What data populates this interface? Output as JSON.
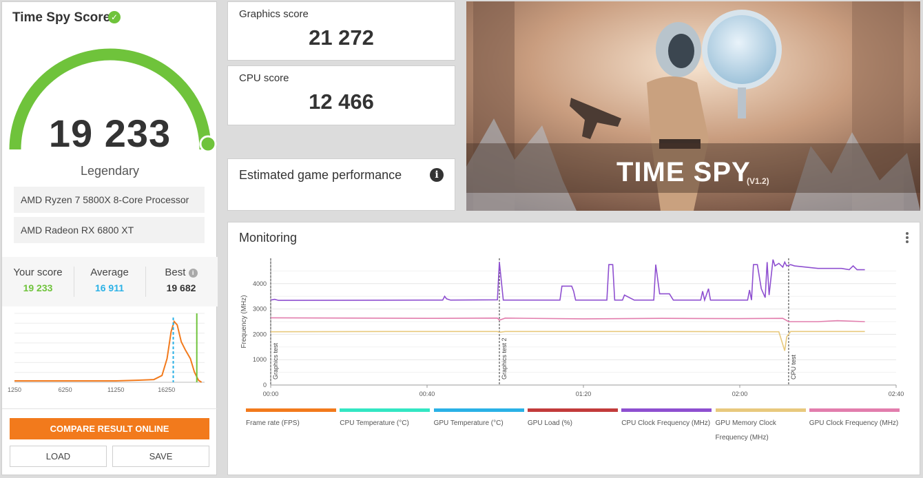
{
  "score_panel": {
    "title": "Time Spy Score",
    "score": "19 233",
    "rank": "Legendary",
    "cpu_name": "AMD Ryzen 7 5800X 8-Core Processor",
    "gpu_name": "AMD Radeon RX 6800 XT",
    "stats": {
      "your_label": "Your score",
      "your_value": "19 233",
      "avg_label": "Average",
      "avg_value": "16 911",
      "best_label": "Best",
      "best_value": "19 682"
    },
    "colors": {
      "gauge": "#6fc33b",
      "your": "#6fc33b",
      "avg": "#2ab1e6",
      "best": "#333333",
      "curve": "#f27a1c"
    },
    "distribution": {
      "ticks": [
        "1250",
        "6250",
        "11250",
        "16250"
      ],
      "x_min": 1250,
      "x_max": 20000,
      "average": 16911,
      "your_score": 19233,
      "curve": [
        [
          1250,
          0.02
        ],
        [
          6250,
          0.02
        ],
        [
          11250,
          0.02
        ],
        [
          13500,
          0.03
        ],
        [
          15000,
          0.04
        ],
        [
          15800,
          0.1
        ],
        [
          16300,
          0.35
        ],
        [
          16700,
          0.75
        ],
        [
          17000,
          0.9
        ],
        [
          17300,
          0.85
        ],
        [
          17700,
          0.6
        ],
        [
          18100,
          0.48
        ],
        [
          18600,
          0.35
        ],
        [
          19000,
          0.15
        ],
        [
          19400,
          0.03
        ],
        [
          19700,
          0.0
        ]
      ]
    },
    "buttons": {
      "compare": "COMPARE RESULT ONLINE",
      "load": "LOAD",
      "save": "SAVE"
    }
  },
  "graphics_card": {
    "label": "Graphics score",
    "value": "21 272"
  },
  "cpu_card": {
    "label": "CPU score",
    "value": "12 466"
  },
  "game_perf": {
    "label": "Estimated game performance",
    "icon": "info-icon"
  },
  "hero": {
    "title": "TIME SPY",
    "version": "(V1.2)"
  },
  "monitoring": {
    "title": "Monitoring",
    "chart_data": {
      "type": "line",
      "ylabel": "Frequency (MHz)",
      "y_ticks": [
        "0",
        "1000",
        "2000",
        "3000",
        "4000"
      ],
      "x_ticks": [
        "00:00",
        "00:40",
        "01:20",
        "02:00",
        "02:40"
      ],
      "x_range_s": [
        0,
        160
      ],
      "y_range": [
        0,
        5000
      ],
      "markers": [
        {
          "label": "Graphics test",
          "t": 0
        },
        {
          "label": "Graphics test 2",
          "t": 58.5
        },
        {
          "label": "CPU test",
          "t": 132.5
        }
      ],
      "series": [
        {
          "name": "CPU Clock Frequency (MHz)",
          "color": "#8e4fd0",
          "points": [
            [
              0,
              3350
            ],
            [
              1,
              3380
            ],
            [
              2,
              3340
            ],
            [
              40,
              3350
            ],
            [
              44,
              3350
            ],
            [
              44.5,
              3500
            ],
            [
              45,
              3400
            ],
            [
              46,
              3350
            ],
            [
              58,
              3360
            ],
            [
              58.5,
              4850
            ],
            [
              59.5,
              3350
            ],
            [
              74,
              3350
            ],
            [
              74.5,
              3900
            ],
            [
              77,
              3900
            ],
            [
              77.5,
              3700
            ],
            [
              78,
              3350
            ],
            [
              86,
              3350
            ],
            [
              86.5,
              4750
            ],
            [
              87.5,
              4750
            ],
            [
              88,
              3350
            ],
            [
              90,
              3350
            ],
            [
              90.5,
              3550
            ],
            [
              93,
              3350
            ],
            [
              98,
              3350
            ],
            [
              98.5,
              4750
            ],
            [
              99.5,
              3600
            ],
            [
              102,
              3600
            ],
            [
              103,
              3350
            ],
            [
              110,
              3350
            ],
            [
              110.5,
              3700
            ],
            [
              111,
              3350
            ],
            [
              112,
              3800
            ],
            [
              112.5,
              3350
            ],
            [
              122,
              3350
            ],
            [
              122.5,
              3750
            ],
            [
              123,
              3350
            ],
            [
              123.5,
              4750
            ],
            [
              124.5,
              4750
            ],
            [
              125.5,
              3800
            ],
            [
              126.5,
              3450
            ],
            [
              127,
              4850
            ],
            [
              127.5,
              3550
            ],
            [
              128.5,
              4950
            ],
            [
              129,
              4700
            ],
            [
              130,
              4800
            ],
            [
              131,
              4650
            ],
            [
              131.5,
              4850
            ],
            [
              132,
              4700
            ],
            [
              133,
              4750
            ],
            [
              134,
              4700
            ],
            [
              140,
              4600
            ],
            [
              146,
              4600
            ],
            [
              148,
              4550
            ],
            [
              149,
              4700
            ],
            [
              150,
              4550
            ],
            [
              152,
              4550
            ]
          ]
        },
        {
          "name": "GPU Clock Frequency (MHz)",
          "color": "#e27dad",
          "points": [
            [
              0,
              2650
            ],
            [
              20,
              2640
            ],
            [
              40,
              2630
            ],
            [
              58,
              2640
            ],
            [
              58.5,
              2560
            ],
            [
              60,
              2640
            ],
            [
              80,
              2610
            ],
            [
              100,
              2630
            ],
            [
              120,
              2620
            ],
            [
              131,
              2630
            ],
            [
              132.5,
              2500
            ],
            [
              140,
              2500
            ],
            [
              145,
              2540
            ],
            [
              152,
              2500
            ]
          ]
        },
        {
          "name": "GPU Memory Clock Frequency (MHz)",
          "color": "#e8c97d",
          "points": [
            [
              0,
              2100
            ],
            [
              30,
              2110
            ],
            [
              58,
              2110
            ],
            [
              58.5,
              2080
            ],
            [
              60,
              2110
            ],
            [
              100,
              2110
            ],
            [
              130,
              2100
            ],
            [
              131,
              1600
            ],
            [
              131.5,
              1350
            ],
            [
              132,
              1900
            ],
            [
              133,
              2110
            ],
            [
              152,
              2110
            ]
          ]
        }
      ]
    },
    "legend": [
      {
        "label": "Frame rate (FPS)",
        "color": "#f27a1c"
      },
      {
        "label": "CPU Temperature (°C)",
        "color": "#33e6c3"
      },
      {
        "label": "GPU Temperature (°C)",
        "color": "#2ab1e6"
      },
      {
        "label": "GPU Load (%)",
        "color": "#c23b3b"
      },
      {
        "label": "CPU Clock Frequency (MHz)",
        "color": "#8e4fd0"
      },
      {
        "label": "GPU Memory Clock Frequency (MHz)",
        "color": "#e8c97d"
      },
      {
        "label": "GPU Clock Frequency (MHz)",
        "color": "#e27dad"
      }
    ]
  }
}
